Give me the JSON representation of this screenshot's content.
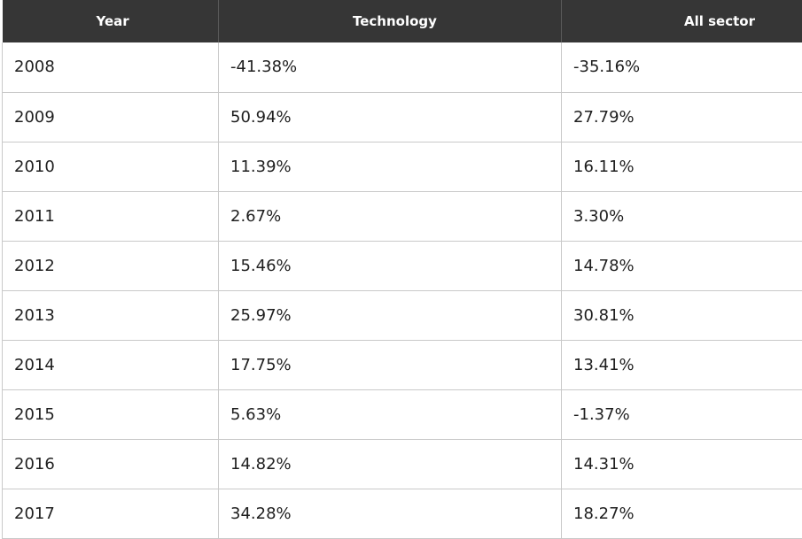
{
  "table": {
    "headers": [
      "Year",
      "Technology",
      "All sector"
    ],
    "rows": [
      {
        "year": "2008",
        "technology": "-41.38%",
        "all_sector": "-35.16%"
      },
      {
        "year": "2009",
        "technology": "50.94%",
        "all_sector": "27.79%"
      },
      {
        "year": "2010",
        "technology": "11.39%",
        "all_sector": "16.11%"
      },
      {
        "year": "2011",
        "technology": "2.67%",
        "all_sector": "3.30%"
      },
      {
        "year": "2012",
        "technology": "15.46%",
        "all_sector": "14.78%"
      },
      {
        "year": "2013",
        "technology": "25.97%",
        "all_sector": "30.81%"
      },
      {
        "year": "2014",
        "technology": "17.75%",
        "all_sector": "13.41%"
      },
      {
        "year": "2015",
        "technology": "5.63%",
        "all_sector": "-1.37%"
      },
      {
        "year": "2016",
        "technology": "14.82%",
        "all_sector": "14.31%"
      },
      {
        "year": "2017",
        "technology": "34.28%",
        "all_sector": "18.27%"
      }
    ]
  },
  "colors": {
    "header_background": "#363636",
    "header_text": "#ffffff",
    "cell_text": "#1f1f1f",
    "grid_line": "#c9c9c9"
  }
}
